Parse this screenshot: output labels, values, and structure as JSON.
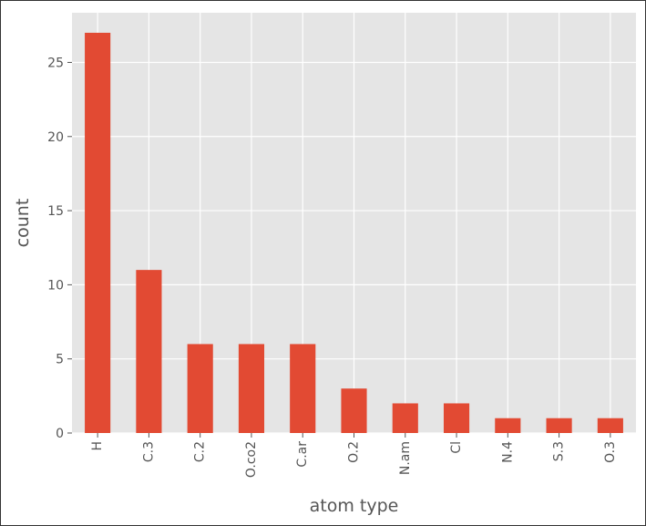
{
  "chart_data": {
    "type": "bar",
    "categories": [
      "H",
      "C.3",
      "C.2",
      "O.co2",
      "C.ar",
      "O.2",
      "N.am",
      "Cl",
      "N.4",
      "S.3",
      "O.3"
    ],
    "values": [
      27,
      11,
      6,
      6,
      6,
      3,
      2,
      2,
      1,
      1,
      1
    ],
    "xlabel": "atom type",
    "ylabel": "count",
    "ylim": [
      0,
      28.35
    ],
    "yticks": [
      0,
      5,
      10,
      15,
      20,
      25
    ],
    "grid": true,
    "colors": {
      "bar": "#E24A33",
      "plot_background": "#E5E5E5",
      "grid": "#FFFFFF",
      "text": "#555555"
    }
  }
}
